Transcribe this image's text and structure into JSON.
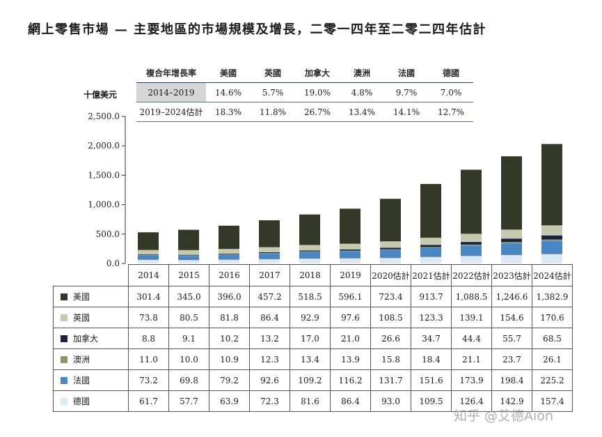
{
  "title": "網上零售市場 — 主要地區的市場規模及增長，二零一四年至二零二四年估計",
  "watermark": "知乎 @艾德Aion",
  "cagr_table": {
    "header": "複合年增長率",
    "regions": [
      "美國",
      "英國",
      "加拿大",
      "澳洲",
      "法國",
      "德國"
    ],
    "rows": [
      {
        "period": "2014–2019",
        "values": [
          "14.6%",
          "5.7%",
          "19.0%",
          "4.8%",
          "9.7%",
          "7.0%"
        ]
      },
      {
        "period": "2019–2024估計",
        "values": [
          "18.3%",
          "11.8%",
          "26.7%",
          "13.4%",
          "14.1%",
          "12.7%"
        ]
      }
    ]
  },
  "chart_data": {
    "type": "bar",
    "stacked": true,
    "ylabel": "十億美元",
    "ylim": [
      0,
      2500
    ],
    "yticks": [
      "2,500.0",
      "2,000.0",
      "1,500.0",
      "1,000.0",
      "500.0",
      "0.0"
    ],
    "categories": [
      "2014",
      "2015",
      "2016",
      "2017",
      "2018",
      "2019",
      "2020估計",
      "2021估計",
      "2022估計",
      "2023估計",
      "2024估計"
    ],
    "series": [
      {
        "name": "德國",
        "color": "#dce9f5",
        "values": [
          61.7,
          57.7,
          63.9,
          72.3,
          81.6,
          86.4,
          93.0,
          109.5,
          126.4,
          142.9,
          157.4
        ]
      },
      {
        "name": "法國",
        "color": "#4a86c4",
        "values": [
          73.2,
          69.8,
          79.2,
          92.6,
          109.2,
          116.2,
          131.7,
          151.6,
          173.9,
          198.4,
          225.2
        ]
      },
      {
        "name": "澳洲",
        "color": "#8e946a",
        "values": [
          11.0,
          10.0,
          10.9,
          12.3,
          13.4,
          13.9,
          15.8,
          18.4,
          21.1,
          23.7,
          26.1
        ]
      },
      {
        "name": "加拿大",
        "color": "#1a2440",
        "values": [
          8.8,
          9.1,
          10.2,
          13.2,
          17.0,
          21.0,
          26.6,
          34.7,
          44.4,
          55.7,
          68.5
        ]
      },
      {
        "name": "英國",
        "color": "#c6c9ae",
        "values": [
          73.8,
          80.5,
          81.8,
          86.4,
          92.9,
          97.6,
          108.5,
          123.3,
          139.1,
          154.6,
          170.6
        ]
      },
      {
        "name": "美國",
        "color": "#343828",
        "values": [
          301.4,
          345.0,
          396.0,
          457.2,
          518.5,
          596.1,
          723.4,
          913.7,
          1088.5,
          1246.6,
          1382.9
        ]
      }
    ],
    "table_rows": [
      {
        "name": "美國",
        "color": "#343828",
        "cells": [
          "301.4",
          "345.0",
          "396.0",
          "457.2",
          "518.5",
          "596.1",
          "723.4",
          "913.7",
          "1,088.5",
          "1,246.6",
          "1,382.9"
        ]
      },
      {
        "name": "英國",
        "color": "#c6c9ae",
        "cells": [
          "73.8",
          "80.5",
          "81.8",
          "86.4",
          "92.9",
          "97.6",
          "108.5",
          "123.3",
          "139.1",
          "154.6",
          "170.6"
        ]
      },
      {
        "name": "加拿大",
        "color": "#1a2440",
        "cells": [
          "8.8",
          "9.1",
          "10.2",
          "13.2",
          "17.0",
          "21.0",
          "26.6",
          "34.7",
          "44.4",
          "55.7",
          "68.5"
        ]
      },
      {
        "name": "澳洲",
        "color": "#8e946a",
        "cells": [
          "11.0",
          "10.0",
          "10.9",
          "12.3",
          "13.4",
          "13.9",
          "15.8",
          "18.4",
          "21.1",
          "23.7",
          "26.1"
        ]
      },
      {
        "name": "法國",
        "color": "#4a86c4",
        "cells": [
          "73.2",
          "69.8",
          "79.2",
          "92.6",
          "109.2",
          "116.2",
          "131.7",
          "151.6",
          "173.9",
          "198.4",
          "225.2"
        ]
      },
      {
        "name": "德國",
        "color": "#dce9f5",
        "cells": [
          "61.7",
          "57.7",
          "63.9",
          "72.3",
          "81.6",
          "86.4",
          "93.0",
          "109.5",
          "126.4",
          "142.9",
          "157.4"
        ]
      }
    ]
  }
}
